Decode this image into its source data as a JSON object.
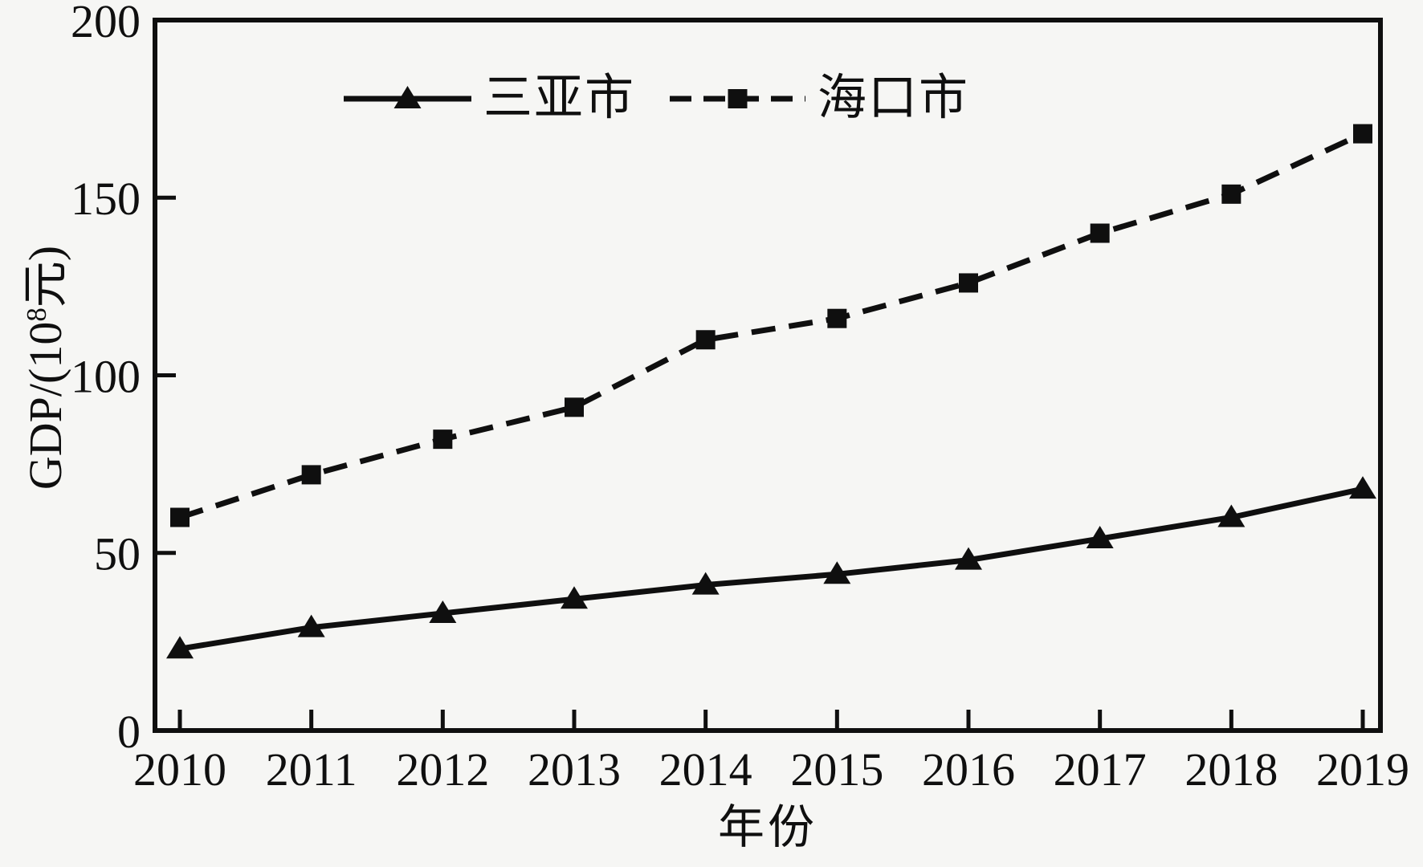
{
  "figure": {
    "background": "#f6f6f4",
    "ink": "#0f0f0f"
  },
  "legend": {
    "position": "top",
    "items": [
      {
        "id": "sanya",
        "label": "三亚市",
        "line": "solid",
        "marker": "triangle"
      },
      {
        "id": "haikou",
        "label": "海口市",
        "line": "dashed",
        "marker": "square"
      }
    ]
  },
  "axes": {
    "x_title": "年份",
    "y_title_prefix": "GDP/(10",
    "y_title_sup": "8",
    "y_title_suffix": "元)"
  },
  "chart_data": {
    "type": "line",
    "title": "",
    "xlabel": "年份",
    "ylabel": "GDP/(10^8元)",
    "categories": [
      "2010",
      "2011",
      "2012",
      "2013",
      "2014",
      "2015",
      "2016",
      "2017",
      "2018",
      "2019"
    ],
    "ylim": [
      0,
      200
    ],
    "yticks": [
      0,
      50,
      100,
      150,
      200
    ],
    "grid": false,
    "legend_position": "top",
    "series": [
      {
        "name": "三亚市",
        "id": "sanya",
        "line": "solid",
        "marker": "triangle",
        "color": "#0f0f0f",
        "values": [
          23,
          29,
          33,
          37,
          41,
          44,
          48,
          54,
          60,
          68
        ]
      },
      {
        "name": "海口市",
        "id": "haikou",
        "line": "dashed",
        "marker": "square",
        "color": "#0f0f0f",
        "values": [
          60,
          72,
          82,
          91,
          110,
          116,
          126,
          140,
          151,
          168
        ]
      }
    ]
  }
}
